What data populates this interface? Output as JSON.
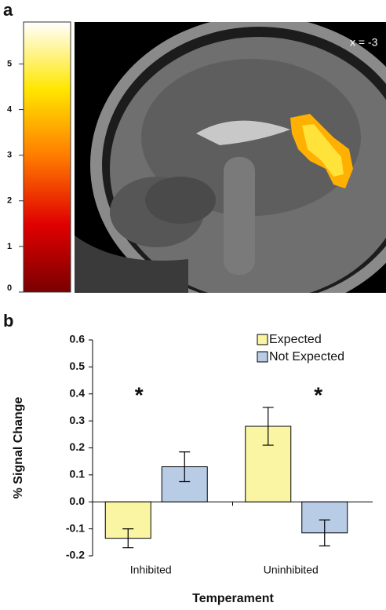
{
  "chart_data": [
    {
      "type": "image",
      "panel_label": "a",
      "annotation": "x = -3",
      "colormap": [
        "#7a0000",
        "#e00000",
        "#ff7a00",
        "#ffe600",
        "#ffffff"
      ],
      "ylim": [
        0,
        5.92
      ],
      "yticks": [
        0,
        1,
        2,
        3,
        4,
        5
      ]
    },
    {
      "type": "bar",
      "panel_label": "b",
      "categories": [
        "Inhibited",
        "Uninhibited"
      ],
      "series": [
        {
          "name": "Expected",
          "color": "#f9f5a3",
          "values": [
            -0.135,
            0.28
          ],
          "errors": [
            0.035,
            0.07
          ]
        },
        {
          "name": "Not Expected",
          "color": "#b9cce6",
          "values": [
            0.13,
            -0.115
          ],
          "errors": [
            0.055,
            0.048
          ]
        }
      ],
      "annotations": [
        "*",
        "*"
      ],
      "x_label": "Temperament",
      "y_label": "% Signal Change",
      "ylim": [
        -0.2,
        0.6
      ],
      "yticks": [
        0.6,
        0.5,
        0.4,
        0.3,
        0.2,
        0.1,
        {
          "value": 0,
          "label": "0.0"
        },
        -0.1,
        -0.2
      ],
      "legend": "top-right"
    }
  ]
}
